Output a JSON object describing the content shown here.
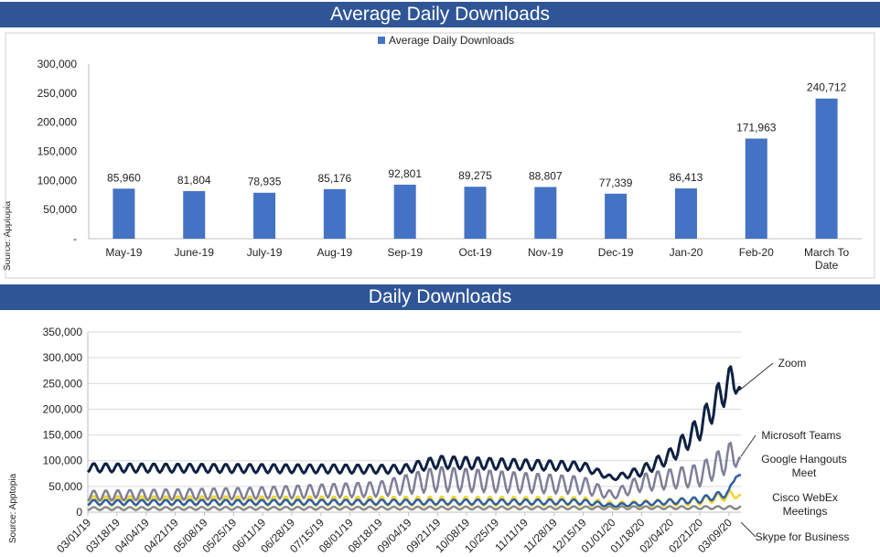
{
  "chart_data": [
    {
      "type": "bar",
      "title": "Average Daily Downloads",
      "source": "Source: Apptopia",
      "legend": {
        "label": "Average Daily Downloads",
        "position": "top"
      },
      "series": [
        {
          "name": "Average Daily Downloads",
          "color": "#4472c4"
        }
      ],
      "categories": [
        "May-19",
        "June-19",
        "July-19",
        "Aug-19",
        "Sep-19",
        "Oct-19",
        "Nov-19",
        "Dec-19",
        "Jan-20",
        "Feb-20",
        "March To Date"
      ],
      "values": [
        85960,
        81804,
        78935,
        85176,
        92801,
        89275,
        88807,
        77339,
        86413,
        171963,
        240712
      ],
      "value_labels": [
        "85,960",
        "81,804",
        "78,935",
        "85,176",
        "92,801",
        "89,275",
        "88,807",
        "77,339",
        "86,413",
        "171,963",
        "240,712"
      ],
      "ylim": [
        0,
        300000
      ],
      "yticks": [
        "-",
        "50,000",
        "100,000",
        "150,000",
        "200,000",
        "250,000",
        "300,000"
      ],
      "grid": false
    },
    {
      "type": "line",
      "title": "Daily Downloads",
      "source": "Source: Apptopia",
      "ylim": [
        0,
        350000
      ],
      "yticks": [
        "0",
        "50,000",
        "100,000",
        "150,000",
        "200,000",
        "250,000",
        "300,000",
        "350,000"
      ],
      "x_start": "2019-03-01",
      "x_end": "2020-03-16",
      "xticks": [
        "03/01/19",
        "03/18/19",
        "04/04/19",
        "04/21/19",
        "05/08/19",
        "05/25/19",
        "06/11/19",
        "06/28/19",
        "07/15/19",
        "08/01/19",
        "08/18/19",
        "09/04/19",
        "09/21/19",
        "10/08/19",
        "10/25/19",
        "11/11/19",
        "11/28/19",
        "12/15/19",
        "01/01/20",
        "01/18/20",
        "02/04/20",
        "02/21/20",
        "03/09/20"
      ],
      "grid": true,
      "legend_position": "right, labels next to line ends",
      "series": [
        {
          "name": "Zoom",
          "color": "#0e2142",
          "weekday_peaks": [
            [
              "2019-03-01",
              95000
            ],
            [
              "2019-09-01",
              92000
            ],
            [
              "2019-09-21",
              110000
            ],
            [
              "2019-12-15",
              98000
            ],
            [
              "2020-01-01",
              70000
            ],
            [
              "2020-01-18",
              90000
            ],
            [
              "2020-02-04",
              125000
            ],
            [
              "2020-02-21",
              190000
            ],
            [
              "2020-03-05",
              265000
            ],
            [
              "2020-03-11",
              290000
            ],
            [
              "2020-03-16",
              240000
            ]
          ],
          "weekend_lows": [
            [
              "2019-03-01",
              78000
            ],
            [
              "2019-09-01",
              75000
            ],
            [
              "2019-09-21",
              85000
            ],
            [
              "2019-12-15",
              80000
            ],
            [
              "2020-01-01",
              62000
            ],
            [
              "2020-01-18",
              70000
            ],
            [
              "2020-02-04",
              95000
            ],
            [
              "2020-02-21",
              140000
            ],
            [
              "2020-03-05",
              200000
            ],
            [
              "2020-03-11",
              230000
            ],
            [
              "2020-03-16",
              232000
            ]
          ]
        },
        {
          "name": "Microsoft Teams",
          "color": "#7f7f98",
          "weekday_peaks": [
            [
              "2019-03-01",
              42000
            ],
            [
              "2019-06-01",
              48000
            ],
            [
              "2019-08-18",
              60000
            ],
            [
              "2019-09-21",
              90000
            ],
            [
              "2019-11-01",
              80000
            ],
            [
              "2019-12-15",
              70000
            ],
            [
              "2020-01-01",
              40000
            ],
            [
              "2020-01-18",
              75000
            ],
            [
              "2020-02-21",
              95000
            ],
            [
              "2020-03-11",
              140000
            ],
            [
              "2020-03-16",
              105000
            ]
          ],
          "weekend_lows": [
            [
              "2019-03-01",
              22000
            ],
            [
              "2019-06-01",
              25000
            ],
            [
              "2019-08-18",
              30000
            ],
            [
              "2019-09-21",
              40000
            ],
            [
              "2019-11-01",
              38000
            ],
            [
              "2019-12-15",
              35000
            ],
            [
              "2020-01-01",
              25000
            ],
            [
              "2020-01-18",
              40000
            ],
            [
              "2020-02-21",
              50000
            ],
            [
              "2020-03-11",
              80000
            ],
            [
              "2020-03-16",
              100000
            ]
          ]
        },
        {
          "name": "Google Hangouts Meet",
          "color": "#2e5fa8",
          "weekday_peaks": [
            [
              "2019-03-01",
              24000
            ],
            [
              "2019-12-15",
              25000
            ],
            [
              "2020-01-01",
              16000
            ],
            [
              "2020-02-21",
              30000
            ],
            [
              "2020-03-09",
              45000
            ],
            [
              "2020-03-13",
              78000
            ],
            [
              "2020-03-16",
              72000
            ]
          ],
          "weekend_lows": [
            [
              "2019-03-01",
              14000
            ],
            [
              "2019-12-15",
              15000
            ],
            [
              "2020-01-01",
              10000
            ],
            [
              "2020-02-21",
              18000
            ],
            [
              "2020-03-09",
              30000
            ],
            [
              "2020-03-13",
              68000
            ],
            [
              "2020-03-16",
              70000
            ]
          ]
        },
        {
          "name": "Cisco WebEx Meetings",
          "color": "#f2d42a",
          "weekday_peaks": [
            [
              "2019-03-01",
              32000
            ],
            [
              "2019-12-15",
              30000
            ],
            [
              "2020-01-01",
              20000
            ],
            [
              "2020-02-21",
              30000
            ],
            [
              "2020-03-11",
              42000
            ],
            [
              "2020-03-16",
              34000
            ]
          ],
          "weekend_lows": [
            [
              "2019-03-01",
              12000
            ],
            [
              "2019-12-15",
              12000
            ],
            [
              "2020-01-01",
              8000
            ],
            [
              "2020-02-21",
              14000
            ],
            [
              "2020-03-11",
              25000
            ],
            [
              "2020-03-16",
              30000
            ]
          ]
        },
        {
          "name": "Skype for Business",
          "color": "#8a8a8a",
          "weekday_peaks": [
            [
              "2019-03-01",
              10000
            ],
            [
              "2020-03-16",
              12000
            ]
          ],
          "weekend_lows": [
            [
              "2019-03-01",
              4000
            ],
            [
              "2020-03-16",
              6000
            ]
          ]
        }
      ]
    }
  ]
}
